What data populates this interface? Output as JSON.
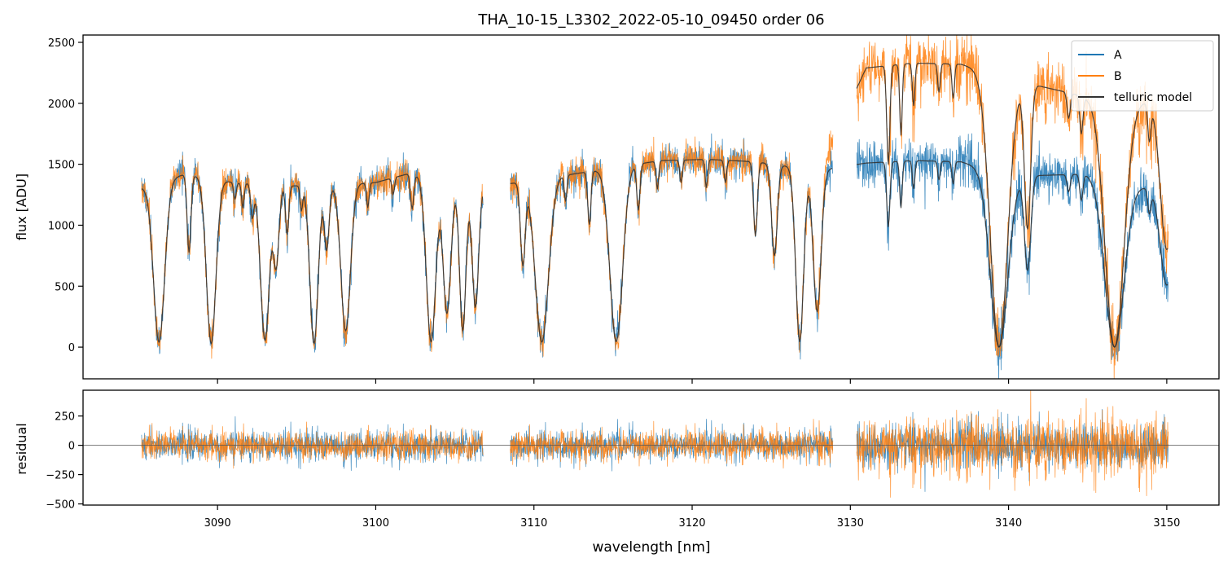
{
  "title": "THA_10-15_L3302_2022-05-10_09450  order 06",
  "colors": {
    "A": "#1f77b4",
    "B": "#ff7f0e",
    "telluric": "#333333",
    "zero_line": "#555555"
  },
  "chart_data": [
    {
      "type": "line",
      "panel": "flux",
      "title": "THA_10-15_L3302_2022-05-10_09450  order 06",
      "xlabel": "",
      "ylabel": "flux [ADU]",
      "xlim": [
        3081.5,
        3153.3
      ],
      "ylim": [
        -260,
        2560
      ],
      "yticks": [
        0,
        500,
        1000,
        1500,
        2000,
        2500
      ],
      "grid": false,
      "legend": {
        "placement": "top-right",
        "entries": [
          "A",
          "B",
          "telluric model"
        ]
      },
      "segments": [
        [
          3085.2,
          3106.8
        ],
        [
          3108.5,
          3128.9
        ],
        [
          3130.4,
          3150.1
        ]
      ],
      "absorption_lines": [
        [
          3086.3,
          0.03,
          0.35
        ],
        [
          3088.2,
          0.55,
          0.12
        ],
        [
          3089.6,
          0.02,
          0.3
        ],
        [
          3091.1,
          0.9,
          0.08
        ],
        [
          3091.6,
          0.85,
          0.08
        ],
        [
          3092.2,
          0.8,
          0.1
        ],
        [
          3093.0,
          0.04,
          0.28
        ],
        [
          3093.7,
          0.5,
          0.18
        ],
        [
          3094.4,
          0.7,
          0.1
        ],
        [
          3095.3,
          0.85,
          0.08
        ],
        [
          3096.1,
          0.02,
          0.26
        ],
        [
          3096.9,
          0.6,
          0.15
        ],
        [
          3098.1,
          0.1,
          0.3
        ],
        [
          3099.5,
          0.85,
          0.08
        ],
        [
          3101.1,
          0.9,
          0.08
        ],
        [
          3102.3,
          0.8,
          0.1
        ],
        [
          3103.5,
          0.03,
          0.3
        ],
        [
          3104.5,
          0.2,
          0.25
        ],
        [
          3105.5,
          0.1,
          0.2
        ],
        [
          3106.3,
          0.25,
          0.2
        ],
        [
          3109.3,
          0.5,
          0.15
        ],
        [
          3110.5,
          0.03,
          0.42
        ],
        [
          3112.0,
          0.85,
          0.08
        ],
        [
          3113.5,
          0.7,
          0.1
        ],
        [
          3115.2,
          0.03,
          0.4
        ],
        [
          3116.6,
          0.75,
          0.1
        ],
        [
          3117.8,
          0.85,
          0.08
        ],
        [
          3119.3,
          0.88,
          0.08
        ],
        [
          3120.9,
          0.85,
          0.08
        ],
        [
          3122.1,
          0.88,
          0.08
        ],
        [
          3124.0,
          0.6,
          0.12
        ],
        [
          3125.2,
          0.5,
          0.18
        ],
        [
          3126.8,
          0.03,
          0.25
        ],
        [
          3127.9,
          0.2,
          0.25
        ],
        [
          3132.4,
          0.65,
          0.1
        ],
        [
          3133.2,
          0.75,
          0.08
        ],
        [
          3134.0,
          0.85,
          0.08
        ],
        [
          3135.6,
          0.9,
          0.08
        ],
        [
          3136.5,
          0.88,
          0.08
        ],
        [
          3139.4,
          0.0,
          0.55
        ],
        [
          3141.2,
          0.45,
          0.2
        ],
        [
          3143.8,
          0.9,
          0.1
        ],
        [
          3144.6,
          0.85,
          0.1
        ],
        [
          3146.7,
          0.0,
          0.6
        ],
        [
          3148.9,
          0.85,
          0.1
        ],
        [
          3150.0,
          0.4,
          0.4
        ]
      ],
      "series": [
        {
          "name": "A",
          "continuum_ADU": [
            1300,
            1420,
            1350,
            1320,
            1330,
            1350,
            1420,
            1400,
            1300,
            1350,
            1530,
            1540,
            1520,
            1450,
            1510,
            1530,
            1520,
            1400,
            1420,
            1270
          ]
        },
        {
          "name": "B",
          "continuum_ADU": [
            1300,
            1420,
            1350,
            1320,
            1330,
            1350,
            1420,
            1400,
            1300,
            1350,
            1530,
            1540,
            1520,
            1450,
            2290,
            2330,
            2320,
            2200,
            2050,
            2000
          ]
        },
        {
          "name": "telluric model",
          "note": "smooth model tracing A and B"
        }
      ],
      "continuum_x_nm": [
        3085,
        3088,
        3091,
        3094,
        3097,
        3100,
        3102,
        3104,
        3106,
        3109,
        3118,
        3121,
        3124,
        3128,
        3131,
        3134,
        3137,
        3140,
        3145,
        3150
      ]
    },
    {
      "type": "line",
      "panel": "residual",
      "xlabel": "wavelength [nm]",
      "ylabel": "residual",
      "xlim": [
        3081.5,
        3153.3
      ],
      "ylim": [
        -510,
        470
      ],
      "xticks": [
        3090,
        3100,
        3110,
        3120,
        3130,
        3140,
        3150
      ],
      "yticks": [
        -500,
        -250,
        0,
        250
      ],
      "grid": false,
      "zero_line": 0,
      "series": [
        {
          "name": "A",
          "noise_sigma": [
            110,
            110,
            170
          ]
        },
        {
          "name": "B",
          "noise_sigma": [
            110,
            110,
            220
          ]
        }
      ]
    }
  ]
}
